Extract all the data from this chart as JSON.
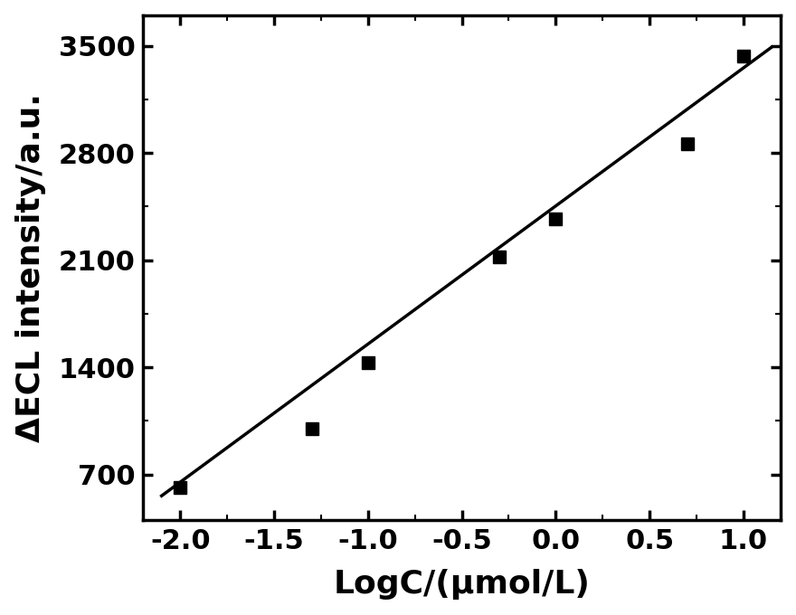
{
  "x_data": [
    -2.0,
    -1.3,
    -1.0,
    -0.3,
    0.0,
    0.7,
    1.0
  ],
  "y_data": [
    615,
    1000,
    1430,
    2120,
    2370,
    2860,
    3430
  ],
  "xlabel": "LogC/(μmol/L)",
  "ylabel": "ΔECL intensity/a.u.",
  "xlim": [
    -2.2,
    1.2
  ],
  "ylim": [
    400,
    3700
  ],
  "xticks": [
    -2.0,
    -1.5,
    -1.0,
    -0.5,
    0.0,
    0.5,
    1.0
  ],
  "yticks": [
    700,
    1400,
    2100,
    2800,
    3500
  ],
  "marker_color": "black",
  "line_color": "black",
  "linewidth": 2.5,
  "marker_size": 10,
  "background_color": "#ffffff",
  "tick_fontsize": 22,
  "label_fontsize": 26,
  "spine_linewidth": 2.5,
  "line_x0": -2.1,
  "line_x1": 1.15,
  "line_y0": 560,
  "line_y1": 3490
}
